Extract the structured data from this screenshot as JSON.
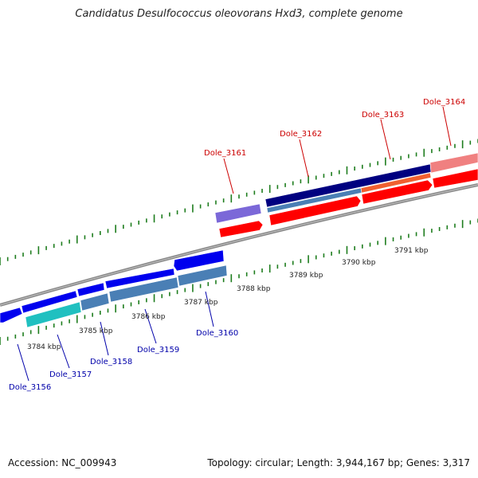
{
  "title": "Candidatus Desulfococcus oleovorans Hxd3, complete genome",
  "footer": {
    "accession": "Accession: NC_009943",
    "summary": "Topology: circular; Length: 3,944,167 bp; Genes: 3,317"
  },
  "colors": {
    "backbone": "#888888",
    "tick": "#1e7d1e",
    "forward_label": "#cc0000",
    "reverse_label": "#0000aa",
    "forward_gene": "#ff0000",
    "forward_gene_light": "#f08080",
    "forward_gene_dark": "#000080",
    "reverse_gene": "#0000ee",
    "reverse_gene_steel": "#4a7fb5",
    "reverse_gene_cyan": "#20c0c0",
    "reverse_gene_lavender": "#7b68d8"
  },
  "kbp_labels": [
    "3784 kbp",
    "3785 kbp",
    "3786 kbp",
    "3787 kbp",
    "3788 kbp",
    "3789 kbp",
    "3790 kbp",
    "3791 kbp"
  ],
  "forward_genes": [
    {
      "label": "Dole_3161"
    },
    {
      "label": "Dole_3162"
    },
    {
      "label": "Dole_3163"
    },
    {
      "label": "Dole_3164"
    }
  ],
  "reverse_genes": [
    {
      "label": "Dole_3156"
    },
    {
      "label": "Dole_3157"
    },
    {
      "label": "Dole_3158"
    },
    {
      "label": "Dole_3159"
    },
    {
      "label": "Dole_3160"
    }
  ]
}
